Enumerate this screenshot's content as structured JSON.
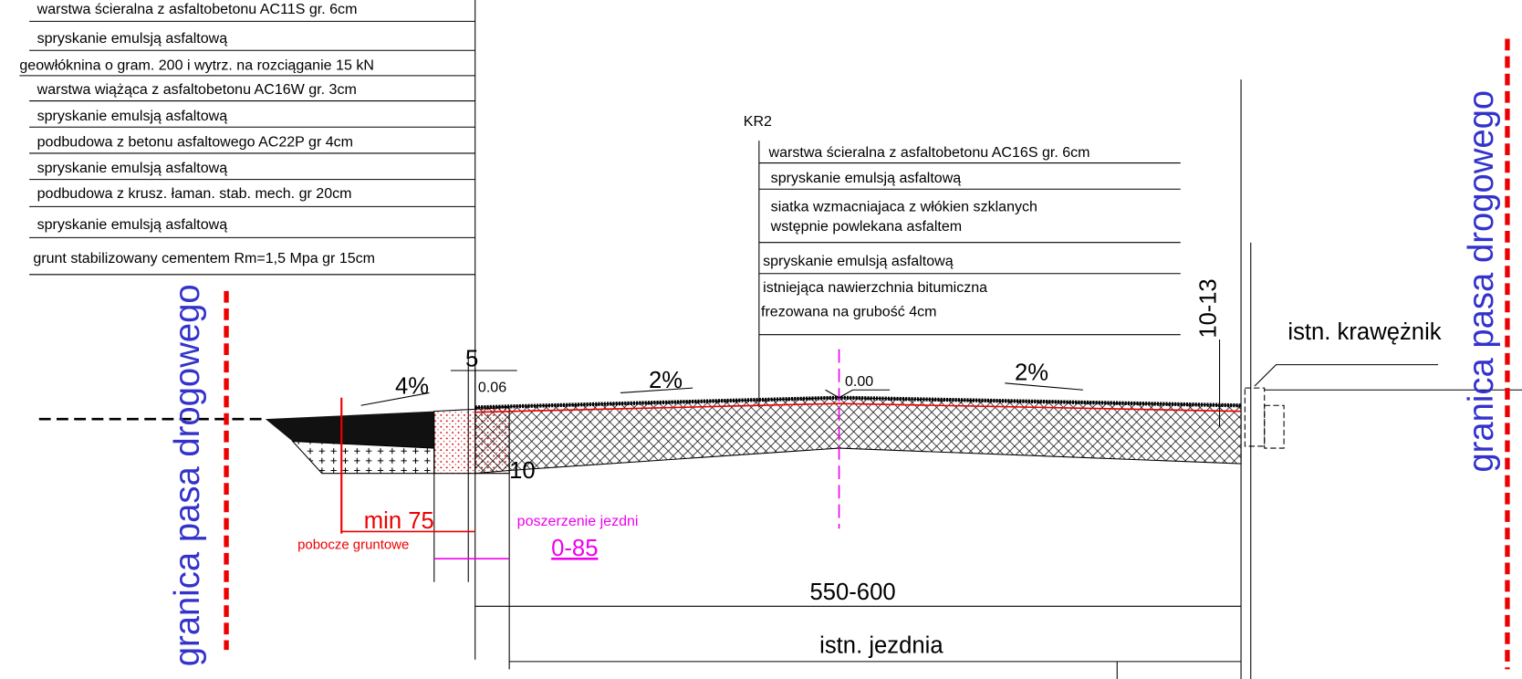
{
  "left_layers": [
    "warstwa ścieralna z asfaltobetonu AC11S gr. 6cm",
    "spryskanie emulsją asfaltową",
    "geowłóknina o gram. 200 i wytrz. na rozciąganie 15 kN",
    "warstwa wiążąca z asfaltobetonu AC16W gr. 3cm",
    "spryskanie emulsją asfaltową",
    "podbudowa z betonu asfaltowego AC22P gr 4cm",
    "spryskanie emulsją asfaltową",
    "podbudowa z krusz. łaman. stab. mech. gr 20cm",
    "spryskanie emulsją asfaltową",
    "grunt stabilizowany cementem Rm=1,5 Mpa  gr 15cm"
  ],
  "right_section": {
    "title": "KR2",
    "layers": [
      [
        "warstwa ścieralna z asfaltobetonu AC16S gr. 6cm"
      ],
      [
        "spryskanie emulsją asfaltową"
      ],
      [
        "siatka wzmacniajaca z włókien szklanych",
        "wstępnie powlekana asfaltem"
      ],
      [
        "spryskanie emulsją asfaltową"
      ],
      [
        "istniejąca nawierzchnia bitumiczna",
        "frezowana na grubość 4cm"
      ]
    ]
  },
  "labels": {
    "boundary_left": "granica pasa drogowego",
    "boundary_right": "granica pasa drogowego",
    "slope_left": "4%",
    "dim_5": "5",
    "dim_006": "0.06",
    "slope_mid_left": "2%",
    "level_000": "0.00",
    "slope_mid_right": "2%",
    "dim_1013": "10-13",
    "curb": "istn. krawężnik",
    "dim_10": "10",
    "shoulder_width": "min 75",
    "shoulder_name": "pobocze gruntowe",
    "widening_name": "poszerzenie jezdni",
    "widening_width": "0-85",
    "road_width": "550-600",
    "existing_road": "istn. jezdnia"
  }
}
